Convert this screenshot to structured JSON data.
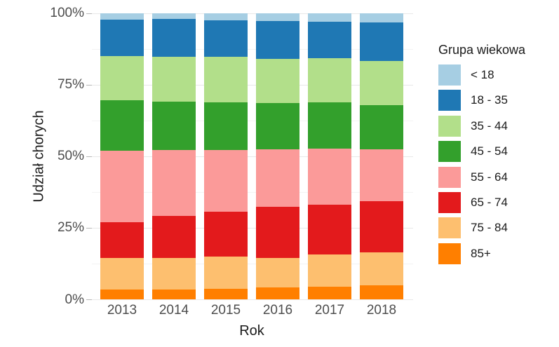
{
  "chart_data": {
    "type": "bar",
    "variant": "stacked-100-percent",
    "title": "",
    "xlabel": "Rok",
    "ylabel": "Udział chorych",
    "legend_title": "Grupa wiekowa",
    "legend_position": "right",
    "grid": "on",
    "ylim": [
      0,
      100
    ],
    "categories": [
      "2013",
      "2014",
      "2015",
      "2016",
      "2017",
      "2018"
    ],
    "y_ticks": [
      {
        "value": 0,
        "label": "0%"
      },
      {
        "value": 25,
        "label": "25%"
      },
      {
        "value": 50,
        "label": "50%"
      },
      {
        "value": 75,
        "label": "75%"
      },
      {
        "value": 100,
        "label": "100%"
      }
    ],
    "series": [
      {
        "name": "< 18",
        "color": "#A6CEE3",
        "values": [
          2.2,
          2.0,
          2.5,
          2.7,
          2.9,
          3.1
        ]
      },
      {
        "name": "18 - 35",
        "color": "#1F78B4",
        "values": [
          12.7,
          13.3,
          12.8,
          13.2,
          12.7,
          13.6
        ]
      },
      {
        "name": "35 - 44",
        "color": "#B2DF8A",
        "values": [
          15.5,
          15.5,
          15.8,
          15.4,
          15.5,
          15.4
        ]
      },
      {
        "name": "45 - 54",
        "color": "#33A02C",
        "values": [
          17.6,
          16.9,
          16.7,
          16.1,
          16.1,
          15.5
        ]
      },
      {
        "name": "55 - 64",
        "color": "#FB9A99",
        "values": [
          24.9,
          23.0,
          21.6,
          20.2,
          19.6,
          17.9
        ]
      },
      {
        "name": "65 - 74",
        "color": "#E31A1C",
        "values": [
          12.6,
          14.8,
          15.5,
          17.8,
          17.5,
          18.1
        ]
      },
      {
        "name": "75 - 84",
        "color": "#FDBF6F",
        "values": [
          11.0,
          10.9,
          11.2,
          10.3,
          11.2,
          11.3
        ]
      },
      {
        "name": "85+",
        "color": "#FF7F00",
        "values": [
          3.5,
          3.6,
          3.9,
          4.3,
          4.5,
          5.1
        ]
      }
    ],
    "stack_order_bottom_to_top": [
      "85+",
      "75 - 84",
      "65 - 74",
      "55 - 64",
      "45 - 54",
      "35 - 44",
      "18 - 35",
      "< 18"
    ]
  }
}
